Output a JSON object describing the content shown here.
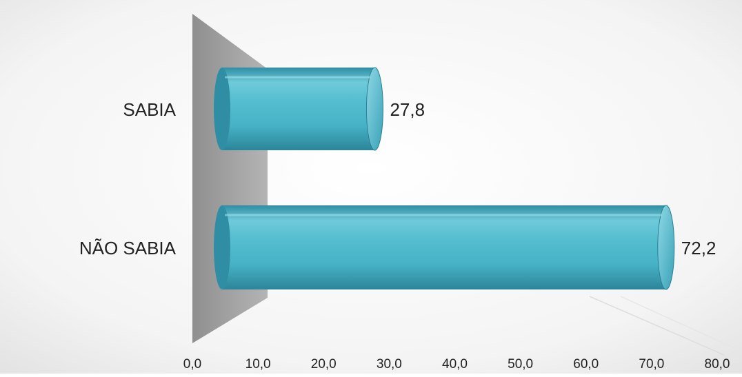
{
  "chart_data": {
    "type": "bar",
    "orientation": "horizontal",
    "style": "3d-cylinder",
    "categories": [
      "SABIA",
      "NÃO SABIA"
    ],
    "values": [
      27.8,
      72.2
    ],
    "value_labels": [
      "27,8",
      "72,2"
    ],
    "xlim": [
      0,
      80
    ],
    "x_ticks": [
      "0,0",
      "10,0",
      "20,0",
      "30,0",
      "40,0",
      "50,0",
      "60,0",
      "70,0",
      "80,0"
    ],
    "title": "",
    "xlabel": "",
    "ylabel": "",
    "grid": false,
    "legend": "none"
  },
  "colors": {
    "bar": "#4bb6c9",
    "bar_dark": "#2f8ea3",
    "bar_light": "#8fd9e6",
    "side_wall": "#9e9e9e",
    "text": "#222222"
  }
}
